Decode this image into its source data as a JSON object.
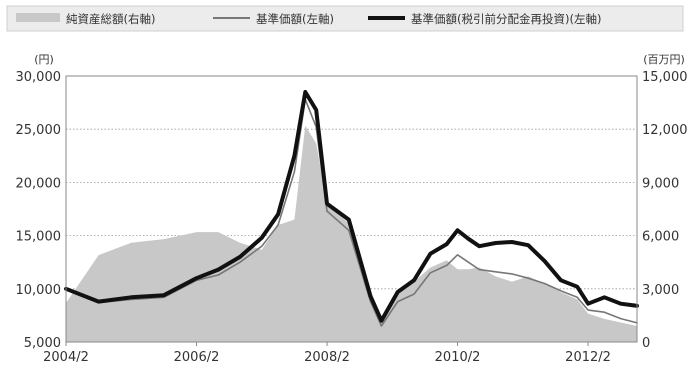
{
  "chart_data": {
    "type": "line",
    "legend_position": "top",
    "grid": "dotted horizontal",
    "left_axis": {
      "unit": "(円)",
      "ylim": [
        5000,
        30000
      ],
      "ticks": [
        "5,000",
        "10,000",
        "15,000",
        "20,000",
        "25,000",
        "30,000"
      ]
    },
    "right_axis": {
      "unit": "(百万円)",
      "ylim": [
        0,
        15000
      ],
      "ticks": [
        "0",
        "3,000",
        "6,000",
        "9,000",
        "12,000",
        "15,000"
      ]
    },
    "x_ticks": [
      "2004/2",
      "2006/2",
      "2008/2",
      "2010/2",
      "2012/2"
    ],
    "x_range": [
      "2004-02",
      "2012-11"
    ],
    "x": [
      "2004-02",
      "2004-08",
      "2005-02",
      "2005-08",
      "2006-02",
      "2006-06",
      "2006-10",
      "2007-02",
      "2007-05",
      "2007-08",
      "2007-10",
      "2007-12",
      "2008-02",
      "2008-06",
      "2008-10",
      "2008-12",
      "2009-03",
      "2009-06",
      "2009-09",
      "2009-12",
      "2010-02",
      "2010-04",
      "2010-06",
      "2010-09",
      "2010-12",
      "2011-03",
      "2011-06",
      "2011-09",
      "2011-12",
      "2012-02",
      "2012-05",
      "2012-08",
      "2012-11"
    ],
    "series": [
      {
        "name": "純資産総額(右軸)",
        "axis": "right",
        "style": "area",
        "color": "#c8c8c8",
        "values": [
          2200,
          4900,
          5600,
          5800,
          6200,
          6200,
          5600,
          5200,
          6600,
          6900,
          12200,
          11200,
          7800,
          6700,
          2900,
          1200,
          2900,
          3400,
          4200,
          4600,
          4100,
          4100,
          4200,
          3700,
          3400,
          3700,
          3300,
          2800,
          2400,
          1600,
          1300,
          1100,
          900
        ]
      },
      {
        "name": "基準価額(左軸)",
        "axis": "left",
        "style": "thin-line",
        "color": "#777777",
        "values": [
          10000,
          8700,
          9000,
          9200,
          10800,
          11300,
          12500,
          14000,
          16000,
          21000,
          27800,
          25200,
          17300,
          15500,
          8800,
          6500,
          8800,
          9500,
          11500,
          12200,
          13200,
          12500,
          11800,
          11600,
          11400,
          11000,
          10500,
          9800,
          9200,
          8000,
          7800,
          7200,
          6800
        ]
      },
      {
        "name": "基準価額(税引前分配金再投資)(左軸)",
        "axis": "left",
        "style": "thick-line",
        "color": "#111111",
        "values": [
          10000,
          8800,
          9200,
          9400,
          11000,
          11800,
          13000,
          14800,
          17000,
          22500,
          28500,
          26800,
          18000,
          16500,
          9300,
          7000,
          9700,
          10800,
          13300,
          14200,
          15500,
          14700,
          14000,
          14300,
          14400,
          14100,
          12600,
          10800,
          10200,
          8600,
          9200,
          8600,
          8400
        ]
      }
    ]
  }
}
